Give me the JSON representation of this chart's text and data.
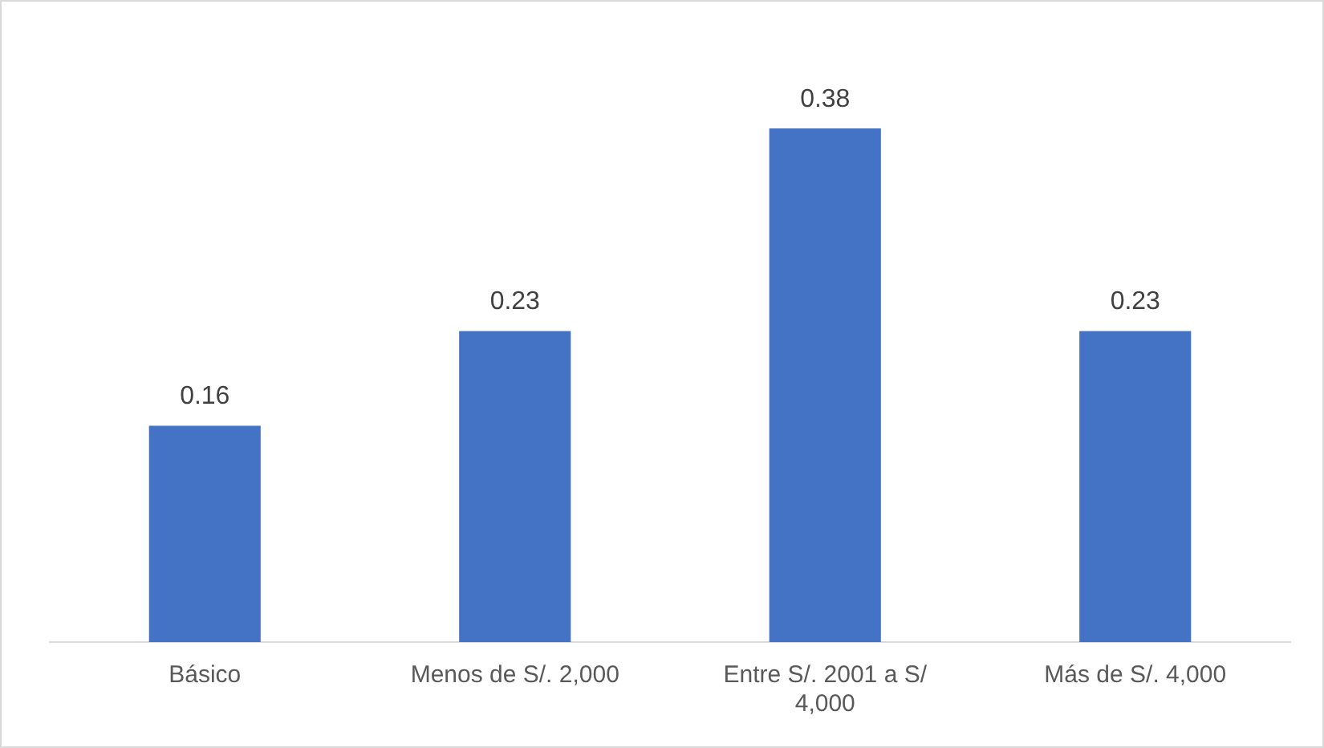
{
  "chart_data": {
    "type": "bar",
    "categories": [
      "Básico",
      "Menos de S/. 2,000",
      "Entre S/. 2001 a S/ 4,000",
      "Más de S/. 4,000"
    ],
    "values": [
      0.16,
      0.23,
      0.38,
      0.23
    ],
    "color": "#4472c4",
    "data_labels": true,
    "grid": false,
    "legend": false,
    "tick_labels": "x"
  }
}
